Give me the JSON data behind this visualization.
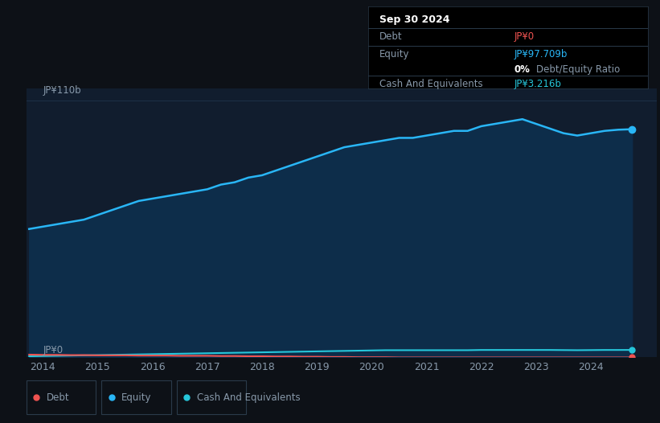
{
  "background_color": "#0d1117",
  "plot_bg_color": "#111d2e",
  "title_box_bg": "#000000",
  "title_box": {
    "date": "Sep 30 2024",
    "debt_label": "Debt",
    "debt_value": "JP¥0",
    "equity_label": "Equity",
    "equity_value": "JP¥97.709b",
    "ratio_value": "0%",
    "ratio_label": "Debt/Equity Ratio",
    "cash_label": "Cash And Equivalents",
    "cash_value": "JP¥3.216b"
  },
  "y_label_top": "JP¥110b",
  "y_label_bottom": "JP¥0",
  "x_ticks": [
    "2014",
    "2015",
    "2016",
    "2017",
    "2018",
    "2019",
    "2020",
    "2021",
    "2022",
    "2023",
    "2024"
  ],
  "equity_color": "#29b6f6",
  "equity_fill_color": "#0d2d4a",
  "debt_color": "#ef5350",
  "cash_color": "#26c6da",
  "grid_color": "#1e3048",
  "text_color": "#8899aa",
  "legend_border_color": "#2a3a4a",
  "separator_color": "#2a3a4a",
  "years": [
    2013.75,
    2014.0,
    2014.25,
    2014.5,
    2014.75,
    2015.0,
    2015.25,
    2015.5,
    2015.75,
    2016.0,
    2016.25,
    2016.5,
    2016.75,
    2017.0,
    2017.25,
    2017.5,
    2017.75,
    2018.0,
    2018.25,
    2018.5,
    2018.75,
    2019.0,
    2019.25,
    2019.5,
    2019.75,
    2020.0,
    2020.25,
    2020.5,
    2020.75,
    2021.0,
    2021.25,
    2021.5,
    2021.75,
    2022.0,
    2022.25,
    2022.5,
    2022.75,
    2023.0,
    2023.25,
    2023.5,
    2023.75,
    2024.0,
    2024.25,
    2024.5,
    2024.75
  ],
  "equity_values": [
    55,
    56,
    57,
    58,
    59,
    61,
    63,
    65,
    67,
    68,
    69,
    70,
    71,
    72,
    74,
    75,
    77,
    78,
    80,
    82,
    84,
    86,
    88,
    90,
    91,
    92,
    93,
    94,
    94,
    95,
    96,
    97,
    97,
    99,
    100,
    101,
    102,
    100,
    98,
    96,
    95,
    96,
    97,
    97.5,
    97.709
  ],
  "debt_values": [
    1.2,
    1.1,
    1.1,
    1.0,
    1.0,
    0.9,
    0.9,
    0.9,
    0.8,
    0.8,
    0.8,
    0.7,
    0.7,
    0.7,
    0.6,
    0.6,
    0.5,
    0.5,
    0.4,
    0.4,
    0.3,
    0.3,
    0.2,
    0.2,
    0.1,
    0.1,
    0.1,
    0.0,
    0.0,
    0.0,
    0.0,
    0.0,
    0.0,
    0.0,
    0.0,
    0.0,
    0.0,
    0.0,
    0.0,
    0.0,
    0.0,
    0.0,
    0.0,
    0.0,
    0.0
  ],
  "cash_values": [
    0.5,
    0.6,
    0.7,
    0.8,
    0.9,
    1.0,
    1.1,
    1.2,
    1.3,
    1.4,
    1.5,
    1.6,
    1.7,
    1.8,
    1.9,
    2.0,
    2.1,
    2.2,
    2.3,
    2.4,
    2.5,
    2.6,
    2.7,
    2.8,
    2.9,
    3.0,
    3.1,
    3.1,
    3.1,
    3.1,
    3.1,
    3.1,
    3.1,
    3.2,
    3.2,
    3.2,
    3.2,
    3.2,
    3.2,
    3.15,
    3.1,
    3.15,
    3.2,
    3.2,
    3.216
  ],
  "ylim": [
    0,
    115
  ],
  "xlim": [
    2013.7,
    2025.2
  ]
}
